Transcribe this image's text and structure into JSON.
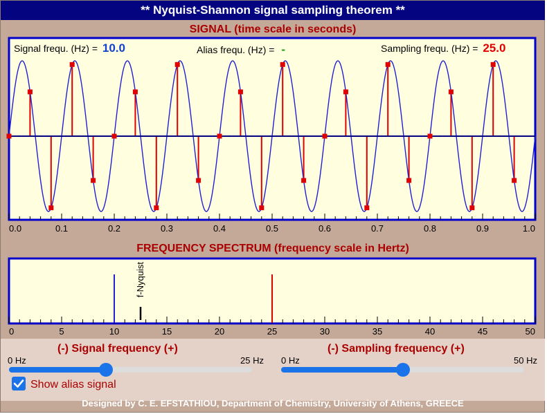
{
  "app": {
    "title": "** Nyquist-Shannon signal sampling theorem  **",
    "footer": "Designed by C. E. EFSTATHIOU, Department of Chemistry, University of Athens, GREECE"
  },
  "signal_panel": {
    "section_title": "SIGNAL (time scale in seconds)",
    "signal_freq_label": "Signal frequ. (Hz) =",
    "signal_freq_value": "10.0",
    "alias_freq_label": "Alias frequ. (Hz) =",
    "alias_freq_value": "-",
    "sampling_freq_label": "Sampling frequ. (Hz) =",
    "sampling_freq_value": "25.0"
  },
  "spectrum_panel": {
    "section_title": "FREQUENCY SPECTRUM (frequency scale in Hertz)",
    "nyquist_label": "f-Nyquist"
  },
  "controls": {
    "signal_slider": {
      "title": "(-)  Signal frequency  (+)",
      "min_label": "0 Hz",
      "max_label": "25 Hz",
      "value": 10,
      "max": 25
    },
    "sampling_slider": {
      "title": "(-)  Sampling frequency  (+)",
      "min_label": "0 Hz",
      "max_label": "50 Hz",
      "value": 25,
      "max": 50
    },
    "show_alias": {
      "label": "Show alias signal",
      "checked": true
    }
  },
  "colors": {
    "signal": "#2020d0",
    "samples": "#e00000",
    "frame": "#0000cc",
    "panel_bg": "#ffffe0",
    "accent": "#1a73e8"
  },
  "chart_data": [
    {
      "type": "line",
      "x_range": [
        0,
        1
      ],
      "x_ticks": [
        "0.0",
        "0.1",
        "0.2",
        "0.3",
        "0.4",
        "0.5",
        "0.6",
        "0.7",
        "0.8",
        "0.9",
        "1.0"
      ],
      "series": [
        {
          "kind": "sine",
          "frequency_hz": 10
        },
        {
          "kind": "samples",
          "sampling_hz": 25
        }
      ]
    },
    {
      "type": "bar",
      "x_range": [
        0,
        50
      ],
      "x_ticks": [
        "0",
        "5",
        "10",
        "15",
        "20",
        "25",
        "30",
        "35",
        "40",
        "45",
        "50"
      ],
      "lines": [
        {
          "kind": "signal",
          "x": 10
        },
        {
          "kind": "sampling",
          "x": 25
        },
        {
          "kind": "nyquist",
          "x": 12.5
        }
      ]
    }
  ]
}
